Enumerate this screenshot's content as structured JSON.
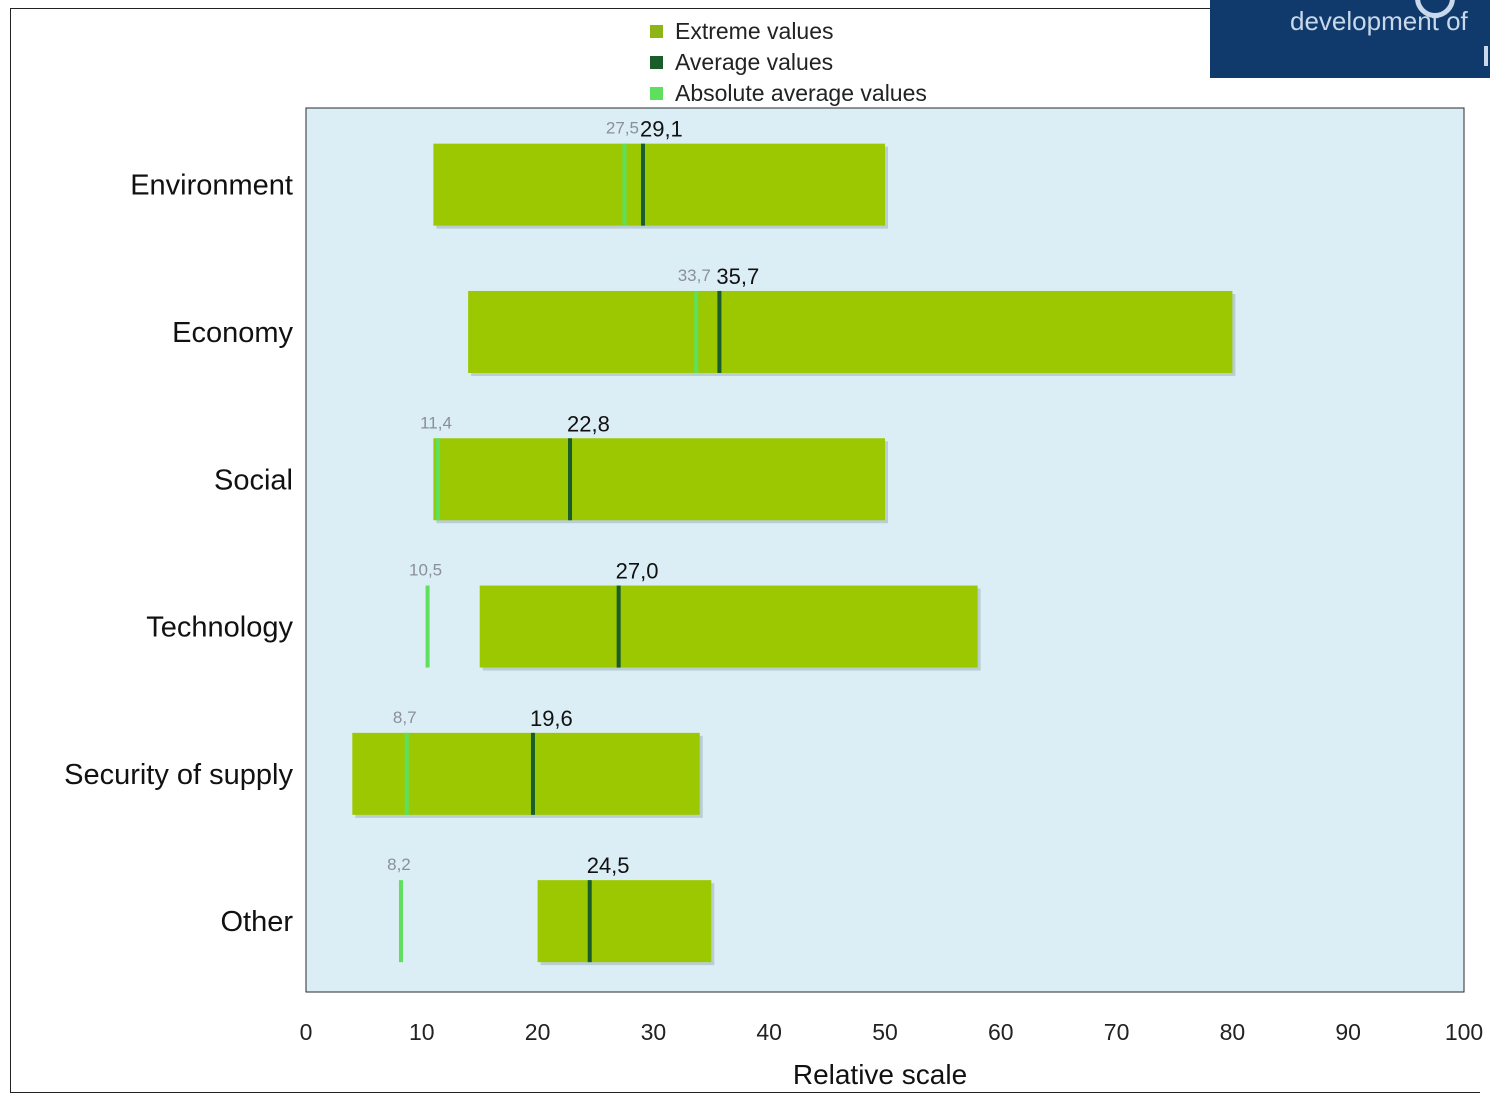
{
  "logo": {
    "text": "development of"
  },
  "legend": [
    {
      "label": "Extreme values",
      "color": "#8db515"
    },
    {
      "label": "Average values",
      "color": "#1a5c2a"
    },
    {
      "label": "Absolute average values",
      "color": "#5ee05e"
    }
  ],
  "chart_data": {
    "type": "bar",
    "orientation": "horizontal-range",
    "xlabel": "Relative scale",
    "xlim": [
      0,
      100
    ],
    "xticks": [
      0,
      10,
      20,
      30,
      40,
      50,
      60,
      70,
      80,
      90,
      100
    ],
    "categories": [
      "Environment",
      "Economy",
      "Social",
      "Technology",
      "Security of supply",
      "Other"
    ],
    "extreme_min": [
      11,
      14,
      11,
      15,
      4,
      20
    ],
    "extreme_max": [
      50,
      80,
      50,
      58,
      34,
      35
    ],
    "average": [
      29.1,
      35.7,
      22.8,
      27.0,
      19.6,
      24.5
    ],
    "average_labels": [
      "29,1",
      "35,7",
      "22,8",
      "27,0",
      "19,6",
      "24,5"
    ],
    "absolute_average": [
      27.5,
      33.7,
      11.4,
      10.5,
      8.7,
      8.2
    ],
    "absolute_average_labels": [
      "27,5",
      "33,7",
      "11,4",
      "10,5",
      "8,7",
      "8,2"
    ],
    "colors": {
      "range_bar": "#9bc800",
      "average_line": "#1a5c2a",
      "absolute_line": "#5ee05e",
      "plot_background": "#dceef5"
    },
    "grid": false,
    "legend_position": "top"
  }
}
